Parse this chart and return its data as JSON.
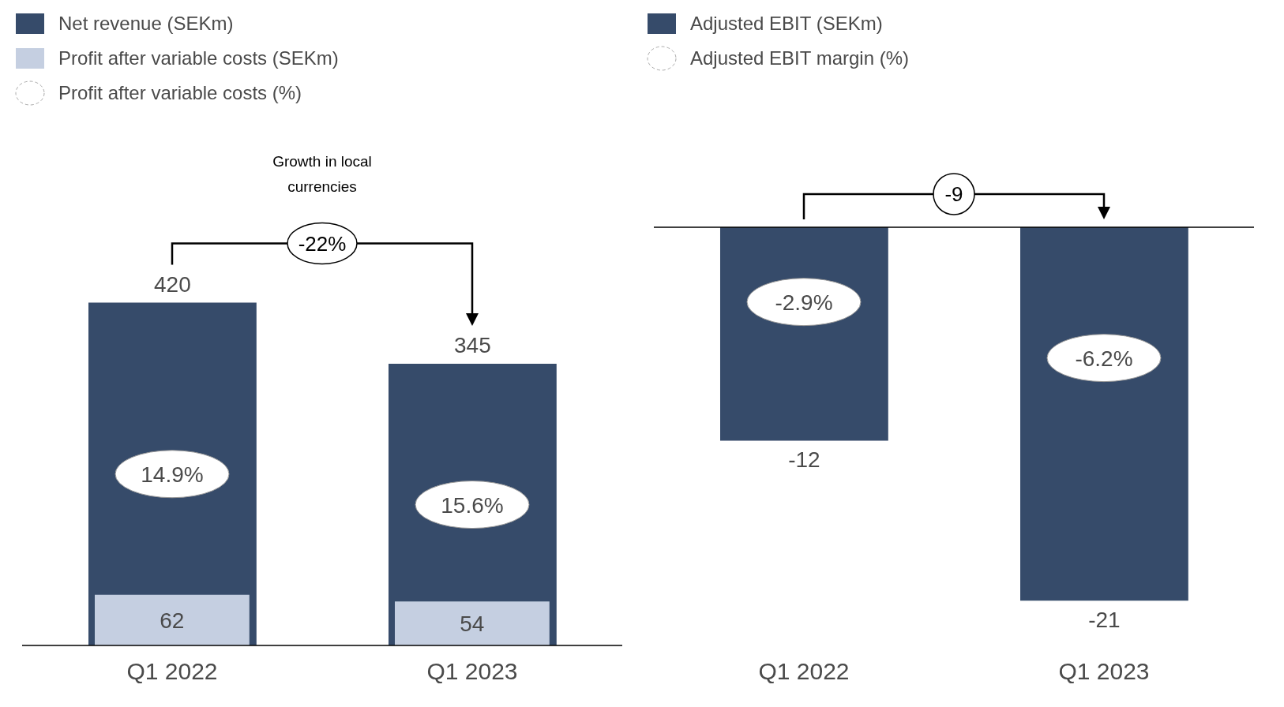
{
  "chart_data": [
    {
      "type": "bar",
      "categories": [
        "Q1 2022",
        "Q1 2023"
      ],
      "series": [
        {
          "name": "Net revenue (SEKm)",
          "color": "#364b6a",
          "values": [
            420,
            345
          ]
        },
        {
          "name": "Profit after variable costs (SEKm)",
          "color": "#c5cfe1",
          "values": [
            62,
            54
          ]
        }
      ],
      "tick_labels": "x",
      "data_labels": true,
      "legend": "top left",
      "grid": false,
      "annotations": [
        "Profit after variable costs (%)",
        "14.9%",
        "15.6%",
        "Growth in local currencies",
        "-22%"
      ]
    },
    {
      "type": "bar",
      "categories": [
        "Q1 2022",
        "Q1 2023"
      ],
      "series": [
        {
          "name": "Adjusted EBIT (SEKm)",
          "color": "#364b6a",
          "values": [
            -12,
            -21
          ]
        }
      ],
      "tick_labels": "x",
      "data_labels": true,
      "legend": "top left",
      "grid": false,
      "ref_lines": [
        {
          "axis": "y",
          "value": 0,
          "color": "#000000"
        }
      ],
      "annotations": [
        "Adjusted EBIT margin (%)",
        "-2.9%",
        "-6.2%",
        "-9"
      ]
    }
  ]
}
